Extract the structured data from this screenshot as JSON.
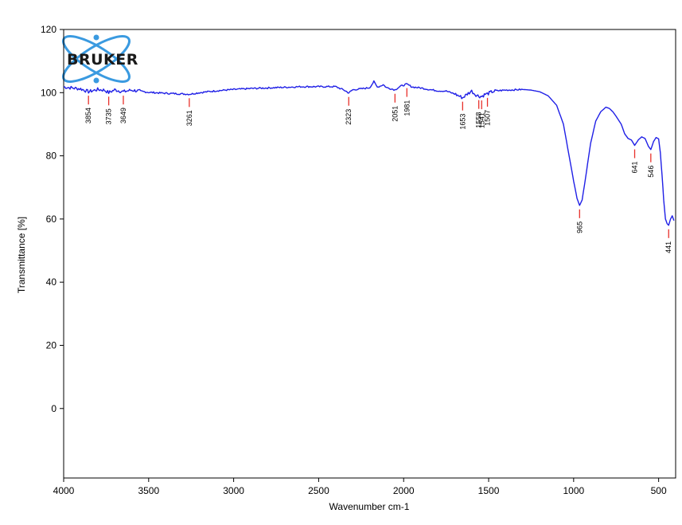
{
  "chart_data": {
    "type": "line",
    "xlabel": "Wavenumber cm-1",
    "ylabel": "Transmittance [%]",
    "xlim": [
      4000,
      400
    ],
    "ylim": [
      -22,
      120
    ],
    "x_ticks": [
      4000,
      3500,
      3000,
      2500,
      2000,
      1500,
      1000,
      500
    ],
    "y_ticks": [
      0,
      20,
      40,
      60,
      80,
      100,
      120
    ],
    "grid": false,
    "logo": "BRUKER",
    "series": [
      {
        "color": "#1f1fe6",
        "x": [
          4000,
          3950,
          3900,
          3854,
          3800,
          3760,
          3735,
          3700,
          3649,
          3600,
          3500,
          3400,
          3300,
          3261,
          3200,
          3100,
          3000,
          2900,
          2800,
          2700,
          2650,
          2600,
          2500,
          2400,
          2350,
          2323,
          2300,
          2250,
          2200,
          2175,
          2160,
          2150,
          2120,
          2100,
          2051,
          2020,
          1981,
          1950,
          1900,
          1850,
          1800,
          1750,
          1700,
          1653,
          1620,
          1600,
          1580,
          1558,
          1541,
          1520,
          1507,
          1480,
          1450,
          1400,
          1350,
          1300,
          1250,
          1200,
          1150,
          1100,
          1060,
          1030,
          1000,
          980,
          965,
          950,
          930,
          900,
          870,
          840,
          810,
          790,
          770,
          750,
          720,
          700,
          680,
          660,
          641,
          620,
          600,
          580,
          560,
          546,
          530,
          515,
          500,
          490,
          480,
          470,
          460,
          450,
          441,
          430,
          420,
          410
        ],
        "y": [
          101.8,
          101.5,
          101.2,
          100.3,
          101.0,
          100.8,
          100.0,
          100.9,
          100.3,
          100.8,
          100.1,
          99.8,
          99.6,
          99.5,
          100.0,
          100.6,
          101.0,
          101.3,
          101.5,
          101.7,
          101.8,
          101.9,
          101.9,
          101.9,
          100.8,
          99.9,
          100.9,
          101.2,
          101.6,
          103.5,
          102.2,
          101.8,
          102.5,
          101.6,
          100.9,
          102.0,
          102.7,
          101.8,
          101.5,
          101.0,
          100.6,
          100.5,
          99.6,
          98.4,
          99.8,
          100.5,
          99.5,
          98.9,
          98.8,
          99.5,
          99.6,
          100.3,
          100.6,
          100.8,
          100.9,
          101.0,
          100.8,
          100.3,
          99.0,
          96.0,
          90.0,
          81.0,
          72.0,
          66.5,
          64.3,
          66.0,
          73.0,
          84.0,
          91.0,
          94.0,
          95.4,
          95.0,
          94.0,
          92.5,
          90.0,
          87.0,
          85.5,
          85.0,
          83.3,
          85.0,
          86.0,
          85.5,
          83.0,
          82.0,
          84.5,
          85.8,
          85.4,
          81.0,
          74.0,
          66.0,
          60.0,
          58.5,
          58.0,
          60.0,
          61.0,
          59.5
        ]
      }
    ],
    "peaks": [
      {
        "x": 3854,
        "label": "3854"
      },
      {
        "x": 3735,
        "label": "3735"
      },
      {
        "x": 3649,
        "label": "3649"
      },
      {
        "x": 3261,
        "label": "3261"
      },
      {
        "x": 2323,
        "label": "2323"
      },
      {
        "x": 2051,
        "label": "2051"
      },
      {
        "x": 1981,
        "label": "1981"
      },
      {
        "x": 1653,
        "label": "1653"
      },
      {
        "x": 1558,
        "label": "1558"
      },
      {
        "x": 1541,
        "label": "1541"
      },
      {
        "x": 1507,
        "label": "1507"
      },
      {
        "x": 965,
        "label": "965"
      },
      {
        "x": 641,
        "label": "641"
      },
      {
        "x": 546,
        "label": "546"
      },
      {
        "x": 441,
        "label": "441"
      }
    ]
  }
}
